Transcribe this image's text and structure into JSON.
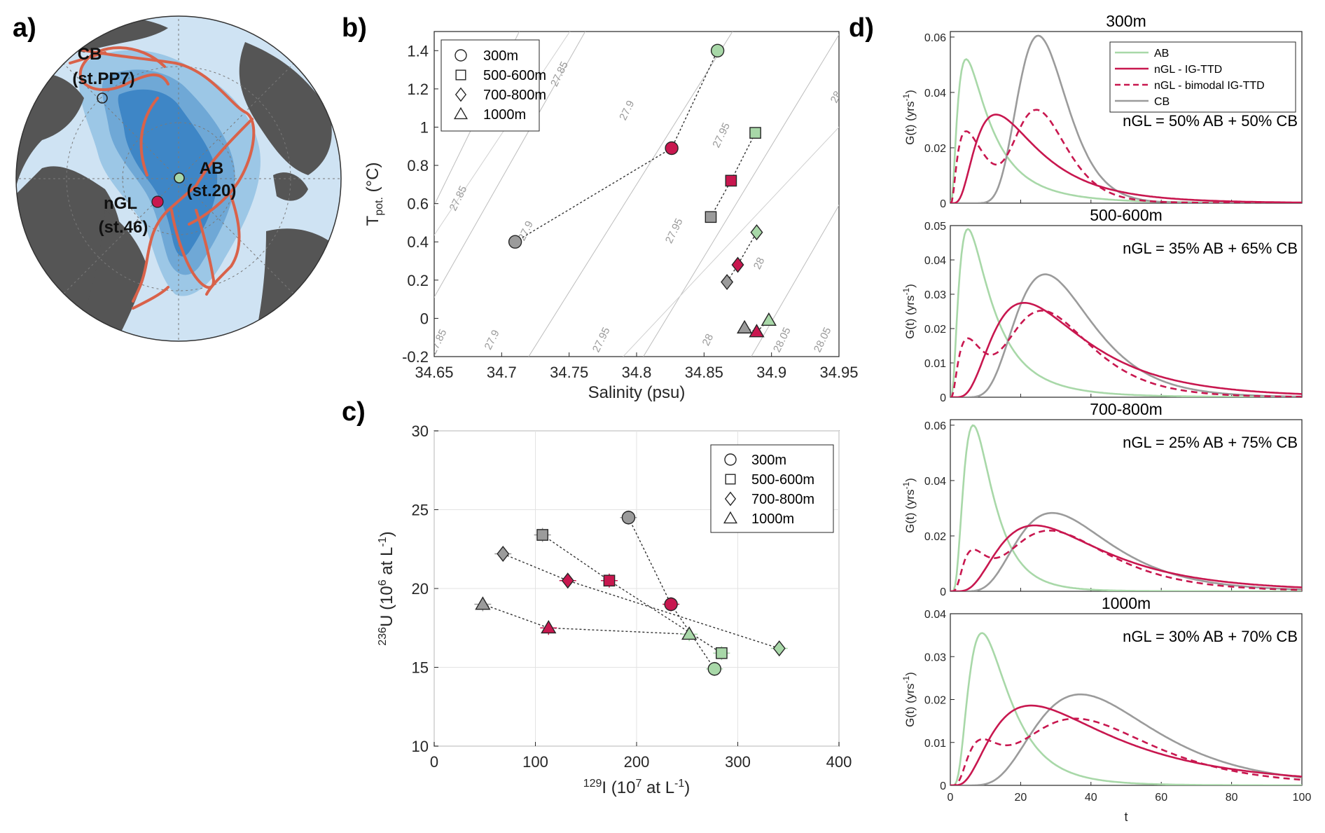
{
  "panel_labels": {
    "a": "a)",
    "b": "b)",
    "c": "c)",
    "d": "d)"
  },
  "colors": {
    "AB": "#a8d8a8",
    "nGL": "#c8174f",
    "CB": "#9b9b9b",
    "ocean": "#cfe3f3",
    "land": "#555555",
    "arrow": "#d9624a"
  },
  "map": {
    "labels": [
      {
        "id": "CB",
        "line1": "CB",
        "line2": "(st.PP7)"
      },
      {
        "id": "AB",
        "line1": "AB",
        "line2": "(st.20)"
      },
      {
        "id": "nGL",
        "line1": "nGL",
        "line2": "(st.46)"
      }
    ]
  },
  "chart_data": [
    {
      "id": "b",
      "type": "scatter",
      "xlabel": "Salinity (psu)",
      "ylabel_main": "T",
      "ylabel_sub": "pot.",
      "ylabel_unit": " (°C)",
      "xlim": [
        34.65,
        34.95
      ],
      "ylim": [
        -0.2,
        1.5
      ],
      "xticks": [
        "34.65",
        "34.7",
        "34.75",
        "34.8",
        "34.85",
        "34.9",
        "34.95"
      ],
      "yticks": [
        "-0.2",
        "0",
        "0.2",
        "0.4",
        "0.6",
        "0.8",
        "1",
        "1.2",
        "1.4"
      ],
      "legend": [
        "300m",
        "500-600m",
        "700-800m",
        "1000m"
      ],
      "contours": [
        "27.85",
        "27.9",
        "27.95",
        "28",
        "28.05"
      ],
      "series": [
        {
          "name": "300m",
          "marker": "circle",
          "points": [
            {
              "x": 34.71,
              "y": 0.4,
              "g": "CB"
            },
            {
              "x": 34.826,
              "y": 0.89,
              "g": "nGL"
            },
            {
              "x": 34.86,
              "y": 1.4,
              "g": "AB"
            }
          ]
        },
        {
          "name": "500-600m",
          "marker": "square",
          "points": [
            {
              "x": 34.855,
              "y": 0.53,
              "g": "CB"
            },
            {
              "x": 34.87,
              "y": 0.72,
              "g": "nGL"
            },
            {
              "x": 34.888,
              "y": 0.97,
              "g": "AB"
            }
          ]
        },
        {
          "name": "700-800m",
          "marker": "diamond",
          "points": [
            {
              "x": 34.867,
              "y": 0.19,
              "g": "CB"
            },
            {
              "x": 34.875,
              "y": 0.28,
              "g": "nGL"
            },
            {
              "x": 34.889,
              "y": 0.45,
              "g": "AB"
            }
          ]
        },
        {
          "name": "1000m",
          "marker": "triangle",
          "points": [
            {
              "x": 34.88,
              "y": -0.05,
              "g": "CB"
            },
            {
              "x": 34.889,
              "y": -0.07,
              "g": "nGL"
            },
            {
              "x": 34.898,
              "y": -0.01,
              "g": "AB"
            }
          ]
        }
      ]
    },
    {
      "id": "c",
      "type": "scatter",
      "xlabel_sup": "129",
      "xlabel_rest": "I (10",
      "xlabel_sup2": "7",
      "xlabel_end": " at L",
      "xlabel_sup3": "-1",
      "xlabel_close": ")",
      "ylabel_sup": "236",
      "ylabel_rest": "U (10",
      "ylabel_sup2": "6",
      "ylabel_end": " at L",
      "ylabel_sup3": "-1",
      "ylabel_close": ")",
      "xlim": [
        0,
        400
      ],
      "ylim": [
        10,
        30
      ],
      "xticks": [
        "0",
        "100",
        "200",
        "300",
        "400"
      ],
      "yticks": [
        "10",
        "15",
        "20",
        "25",
        "30"
      ],
      "legend": [
        "300m",
        "500-600m",
        "700-800m",
        "1000m"
      ],
      "series": [
        {
          "name": "300m",
          "marker": "circle",
          "points": [
            {
              "x": 192,
              "y": 24.5,
              "g": "CB"
            },
            {
              "x": 234,
              "y": 19.0,
              "g": "nGL"
            },
            {
              "x": 277,
              "y": 14.9,
              "g": "AB"
            }
          ]
        },
        {
          "name": "500-600m",
          "marker": "square",
          "points": [
            {
              "x": 107,
              "y": 23.4,
              "g": "CB"
            },
            {
              "x": 173,
              "y": 20.5,
              "g": "nGL"
            },
            {
              "x": 284,
              "y": 15.9,
              "g": "AB"
            }
          ]
        },
        {
          "name": "700-800m",
          "marker": "diamond",
          "points": [
            {
              "x": 68,
              "y": 22.2,
              "g": "CB"
            },
            {
              "x": 132,
              "y": 20.5,
              "g": "nGL"
            },
            {
              "x": 341,
              "y": 16.2,
              "g": "AB"
            }
          ]
        },
        {
          "name": "1000m",
          "marker": "triangle",
          "points": [
            {
              "x": 48,
              "y": 19.0,
              "g": "CB"
            },
            {
              "x": 113,
              "y": 17.5,
              "g": "nGL"
            },
            {
              "x": 252,
              "y": 17.1,
              "g": "AB"
            }
          ]
        }
      ]
    },
    {
      "id": "d",
      "type": "line",
      "xlabel": "t",
      "ylabel_pre": "G(t) (yrs",
      "ylabel_sup": "-1",
      "ylabel_post": ")",
      "xlim": [
        0,
        100
      ],
      "xticks": [
        "0",
        "20",
        "40",
        "60",
        "80",
        "100"
      ],
      "legend": [
        "AB",
        "nGL - IG-TTD",
        "nGL - bimodal IG-TTD",
        "CB"
      ],
      "subplots": [
        {
          "title": "300m",
          "mix": "nGL = 50% AB + 50% CB",
          "ylim": [
            0,
            0.062
          ],
          "yticks": [
            "0",
            "0.02",
            "0.04",
            "0.06"
          ],
          "AB": {
            "peak_t": 4.5,
            "peak": 0.052,
            "s": 0.85
          },
          "CB": {
            "peak_t": 25,
            "peak": 0.0605,
            "s": 0.28
          },
          "nGL": {
            "peak_t": 13,
            "peak": 0.032,
            "s": 0.65
          },
          "bimodal": {
            "w1": 0.5,
            "w2": 0.5
          }
        },
        {
          "title": "500-600m",
          "mix": "nGL = 35% AB + 65% CB",
          "ylim": [
            0,
            0.05
          ],
          "yticks": [
            "0",
            "0.01",
            "0.02",
            "0.03",
            "0.04",
            "0.05"
          ],
          "AB": {
            "peak_t": 5,
            "peak": 0.049,
            "s": 0.8
          },
          "CB": {
            "peak_t": 27,
            "peak": 0.0358,
            "s": 0.4
          },
          "nGL": {
            "peak_t": 21,
            "peak": 0.0275,
            "s": 0.6
          },
          "bimodal": {
            "w1": 0.35,
            "w2": 0.65
          }
        },
        {
          "title": "700-800m",
          "mix": "nGL = 25% AB + 75% CB",
          "ylim": [
            0,
            0.062
          ],
          "yticks": [
            "0",
            "0.02",
            "0.04",
            "0.06"
          ],
          "AB": {
            "peak_t": 6.5,
            "peak": 0.06,
            "s": 0.6
          },
          "CB": {
            "peak_t": 29,
            "peak": 0.0283,
            "s": 0.45
          },
          "nGL": {
            "peak_t": 24,
            "peak": 0.0238,
            "s": 0.6
          },
          "bimodal": {
            "w1": 0.25,
            "w2": 0.75
          }
        },
        {
          "title": "1000m",
          "mix": "nGL = 30% AB + 70% CB",
          "ylim": [
            0,
            0.04
          ],
          "yticks": [
            "0",
            "0.01",
            "0.02",
            "0.03",
            "0.04"
          ],
          "AB": {
            "peak_t": 9,
            "peak": 0.0355,
            "s": 0.6
          },
          "CB": {
            "peak_t": 37,
            "peak": 0.0212,
            "s": 0.45
          },
          "nGL": {
            "peak_t": 23,
            "peak": 0.0186,
            "s": 0.7
          },
          "bimodal": {
            "w1": 0.3,
            "w2": 0.7
          }
        }
      ]
    }
  ]
}
